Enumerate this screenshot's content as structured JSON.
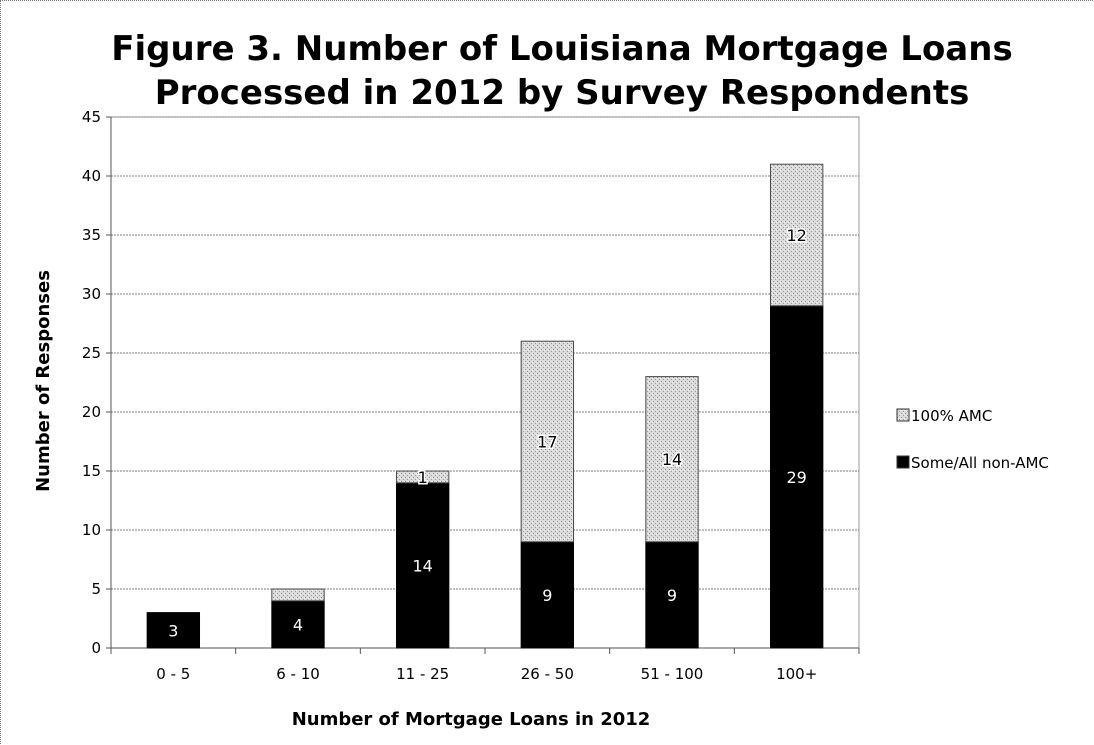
{
  "chart_data": {
    "type": "bar",
    "stacked": true,
    "title": [
      "Figure 3.  Number of Louisiana Mortgage Loans",
      "Processed in 2012 by Survey Respondents"
    ],
    "xlabel": "Number of Mortgage Loans in 2012",
    "ylabel": "Number of Responses",
    "categories": [
      "0 - 5",
      "6 - 10",
      "11 - 25",
      "26 - 50",
      "51 - 100",
      "100+"
    ],
    "ylim": [
      0,
      45
    ],
    "yticks": [
      0,
      5,
      10,
      15,
      20,
      25,
      30,
      35,
      40,
      45
    ],
    "grid": true,
    "legend_position": "right",
    "series": [
      {
        "name": "Some/All non-AMC",
        "values": [
          3,
          4,
          14,
          9,
          9,
          29
        ],
        "labels": [
          "3",
          "4",
          "14",
          "9",
          "9",
          "29"
        ],
        "color": "#000000"
      },
      {
        "name": "100% AMC",
        "values": [
          0,
          1,
          1,
          17,
          14,
          12
        ],
        "labels": [
          "",
          "",
          "1",
          "17",
          "14",
          "12"
        ],
        "color": "#d4d4d4"
      }
    ]
  }
}
